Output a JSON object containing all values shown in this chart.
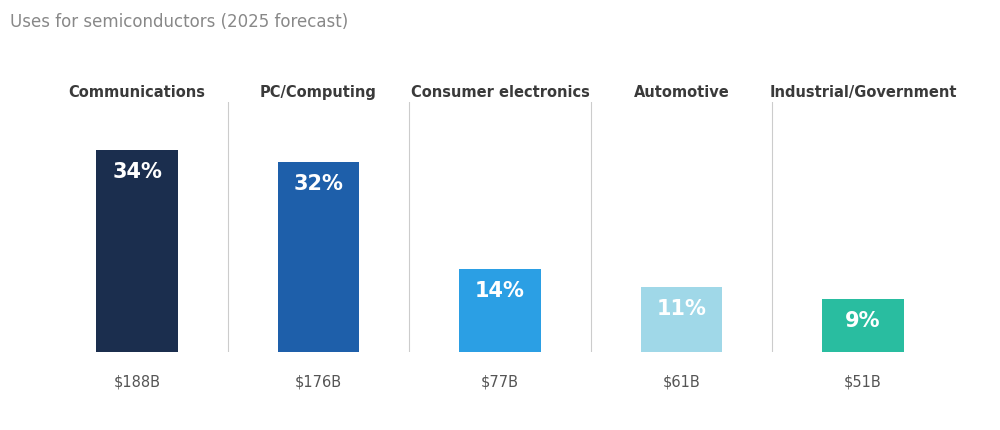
{
  "title": "Uses for semiconductors (2025 forecast)",
  "categories": [
    "Communications",
    "PC/Computing",
    "Consumer electronics",
    "Automotive",
    "Industrial/Government"
  ],
  "values": [
    34,
    32,
    14,
    11,
    9
  ],
  "dollar_labels": [
    "$188B",
    "$176B",
    "$77B",
    "$61B",
    "$51B"
  ],
  "pct_labels": [
    "34%",
    "32%",
    "14%",
    "11%",
    "9%"
  ],
  "bar_colors": [
    "#1b2e4e",
    "#1e5faa",
    "#2b9fe4",
    "#a0d8e8",
    "#29bda0"
  ],
  "background_color": "#ffffff",
  "title_color": "#888888",
  "category_color": "#3a3a3a",
  "dollar_color": "#555555",
  "pct_text_color": "#ffffff",
  "divider_color": "#cccccc",
  "bar_width": 0.45,
  "title_fontsize": 12,
  "category_fontsize": 10.5,
  "pct_fontsize": 15,
  "dollar_fontsize": 10.5,
  "ylim_max": 42,
  "figsize": [
    10.0,
    4.31
  ],
  "dpi": 100
}
